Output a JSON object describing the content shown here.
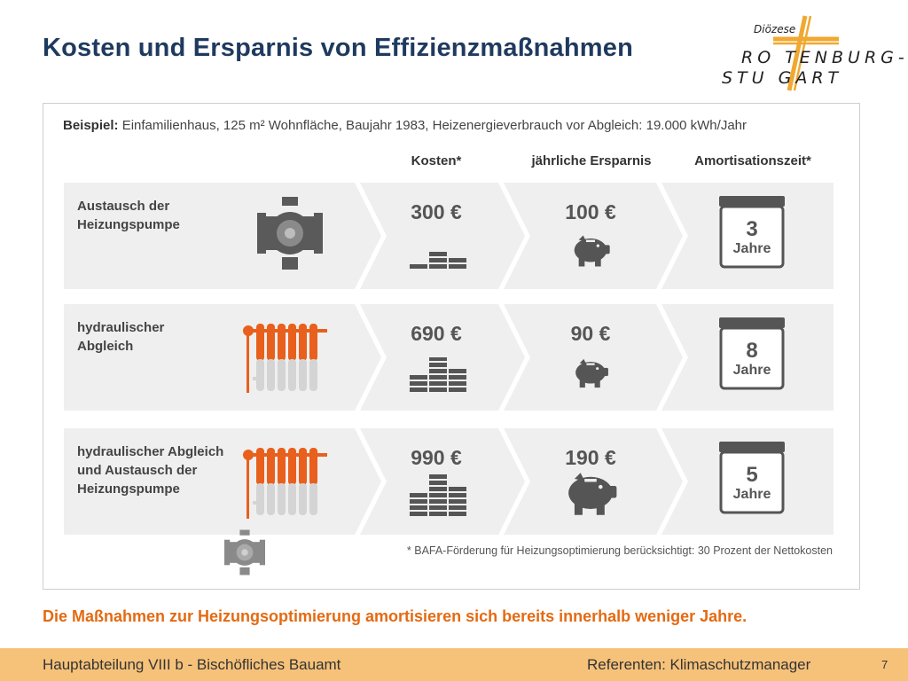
{
  "title": "Kosten und Ersparnis von Effizienzmaßnahmen",
  "logo": {
    "small": "Diözese",
    "line1": "RO  TENBURG-",
    "line2": "STU  GART"
  },
  "example": {
    "label": "Beispiel:",
    "text": "Einfamilienhaus, 125 m² Wohnfläche, Baujahr 1983, Heizenergieverbrauch vor Abgleich: 19.000 kWh/Jahr"
  },
  "columns": {
    "kosten": "Kosten*",
    "ersparnis": "jährliche Ersparnis",
    "amortisation": "Amortisationszeit*"
  },
  "rows": [
    {
      "label_line1": "Austausch der",
      "label_line2": "Heizungspumpe",
      "label_line3": "",
      "cost": "300 €",
      "saving": "100 €",
      "years": "3",
      "unit": "Jahre"
    },
    {
      "label_line1": "hydraulischer",
      "label_line2": "Abgleich",
      "label_line3": "",
      "cost": "690 €",
      "saving": "90 €",
      "years": "8",
      "unit": "Jahre"
    },
    {
      "label_line1": "hydraulischer Abgleich",
      "label_line2": "und Austausch der",
      "label_line3": "Heizungspumpe",
      "cost": "990 €",
      "saving": "190 €",
      "years": "5",
      "unit": "Jahre"
    }
  ],
  "footnote": "* BAFA-Förderung für Heizungsoptimierung berücksichtigt: 30 Prozent der Nettokosten",
  "conclusion": "Die Maßnahmen zur Heizungsoptimierung amortisieren sich bereits innerhalb weniger Jahre.",
  "footer": {
    "left": "Hauptabteilung VIII b - Bischöfliches Bauamt",
    "right": "Referenten: Klimaschutzmanager",
    "page": "7"
  },
  "colors": {
    "title": "#1f3a5f",
    "accent_orange": "#e8601c",
    "conclusion": "#e46a12",
    "footer_bg": "#f6c27a",
    "row_bg": "#efefef",
    "icon_gray": "#5a5a5a"
  },
  "icons": [
    "heating-pump-icon",
    "radiator-icon",
    "coin-stack-icon",
    "piggy-bank-icon",
    "calendar-icon",
    "diocese-cross-logo"
  ]
}
